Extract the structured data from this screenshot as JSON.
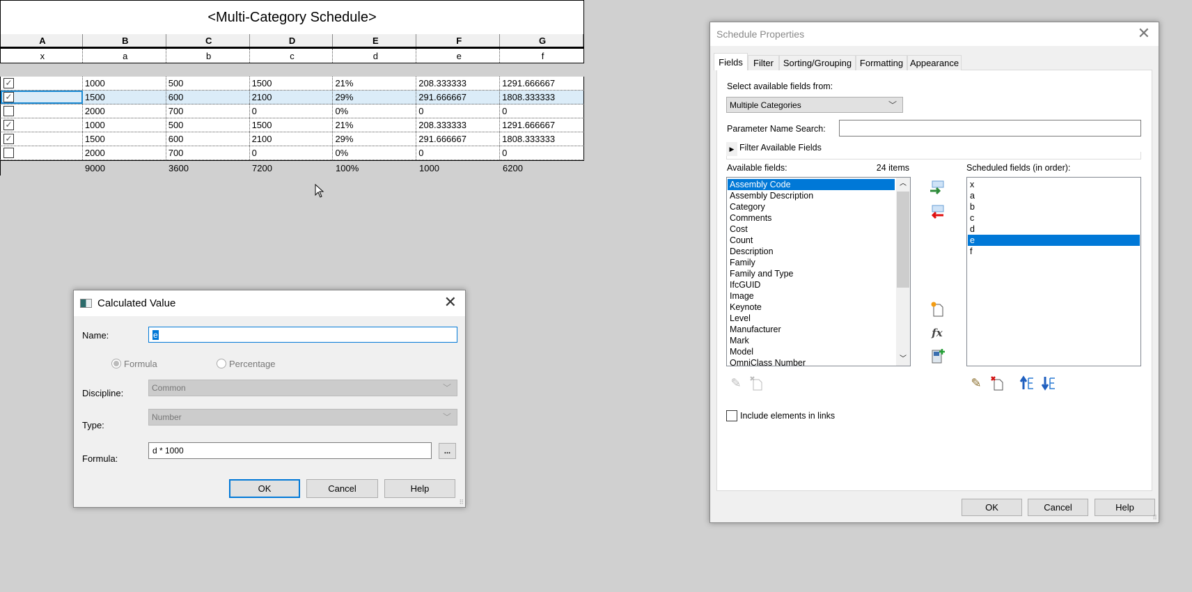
{
  "schedule": {
    "title": "<Multi-Category Schedule>",
    "columns": [
      "A",
      "B",
      "C",
      "D",
      "E",
      "F",
      "G"
    ],
    "fields": [
      "x",
      "a",
      "b",
      "c",
      "d",
      "e",
      "f"
    ],
    "rows": [
      {
        "checked": true,
        "cells": [
          "1000",
          "500",
          "1500",
          "21%",
          "208.333333",
          "1291.666667"
        ]
      },
      {
        "checked": true,
        "cells": [
          "1500",
          "600",
          "2100",
          "29%",
          "291.666667",
          "1808.333333"
        ],
        "selected": true
      },
      {
        "checked": false,
        "cells": [
          "2000",
          "700",
          "0",
          "0%",
          "0",
          "0"
        ]
      },
      {
        "checked": true,
        "cells": [
          "1000",
          "500",
          "1500",
          "21%",
          "208.333333",
          "1291.666667"
        ]
      },
      {
        "checked": true,
        "cells": [
          "1500",
          "600",
          "2100",
          "29%",
          "291.666667",
          "1808.333333"
        ]
      },
      {
        "checked": false,
        "cells": [
          "2000",
          "700",
          "0",
          "0%",
          "0",
          "0"
        ]
      }
    ],
    "totals": [
      "",
      "9000",
      "3600",
      "7200",
      "100%",
      "1000",
      "6200"
    ]
  },
  "calc_dialog": {
    "title": "Calculated Value",
    "name_label": "Name:",
    "name_value": "e",
    "radio_formula": "Formula",
    "radio_percentage": "Percentage",
    "selected_mode": "Formula",
    "discipline_label": "Discipline:",
    "discipline_value": "Common",
    "type_label": "Type:",
    "type_value": "Number",
    "formula_label": "Formula:",
    "formula_value": "d * 1000",
    "browse_label": "...",
    "ok": "OK",
    "cancel": "Cancel",
    "help": "Help"
  },
  "props_dialog": {
    "title": "Schedule Properties",
    "tabs": [
      "Fields",
      "Filter",
      "Sorting/Grouping",
      "Formatting",
      "Appearance"
    ],
    "active_tab": "Fields",
    "select_from_label": "Select available fields from:",
    "select_from_value": "Multiple Categories",
    "param_search_label": "Parameter Name Search:",
    "param_search_value": "",
    "filter_label": "Filter Available Fields",
    "available_label": "Available fields:",
    "item_count": "24 items",
    "available_fields": [
      "Assembly Code",
      "Assembly Description",
      "Category",
      "Comments",
      "Cost",
      "Count",
      "Description",
      "Family",
      "Family and Type",
      "IfcGUID",
      "Image",
      "Keynote",
      "Level",
      "Manufacturer",
      "Mark",
      "Model",
      "OmniClass Number"
    ],
    "available_selected": "Assembly Code",
    "scheduled_label": "Scheduled fields (in order):",
    "scheduled_fields": [
      "x",
      "a",
      "b",
      "c",
      "d",
      "e",
      "f"
    ],
    "scheduled_selected": "e",
    "include_links_label": "Include elements in links",
    "include_links_checked": false,
    "ok": "OK",
    "cancel": "Cancel",
    "help": "Help"
  },
  "colors": {
    "selection": "#0078d7",
    "row_highlight": "#dbecf8",
    "background": "#d0d0d0"
  }
}
